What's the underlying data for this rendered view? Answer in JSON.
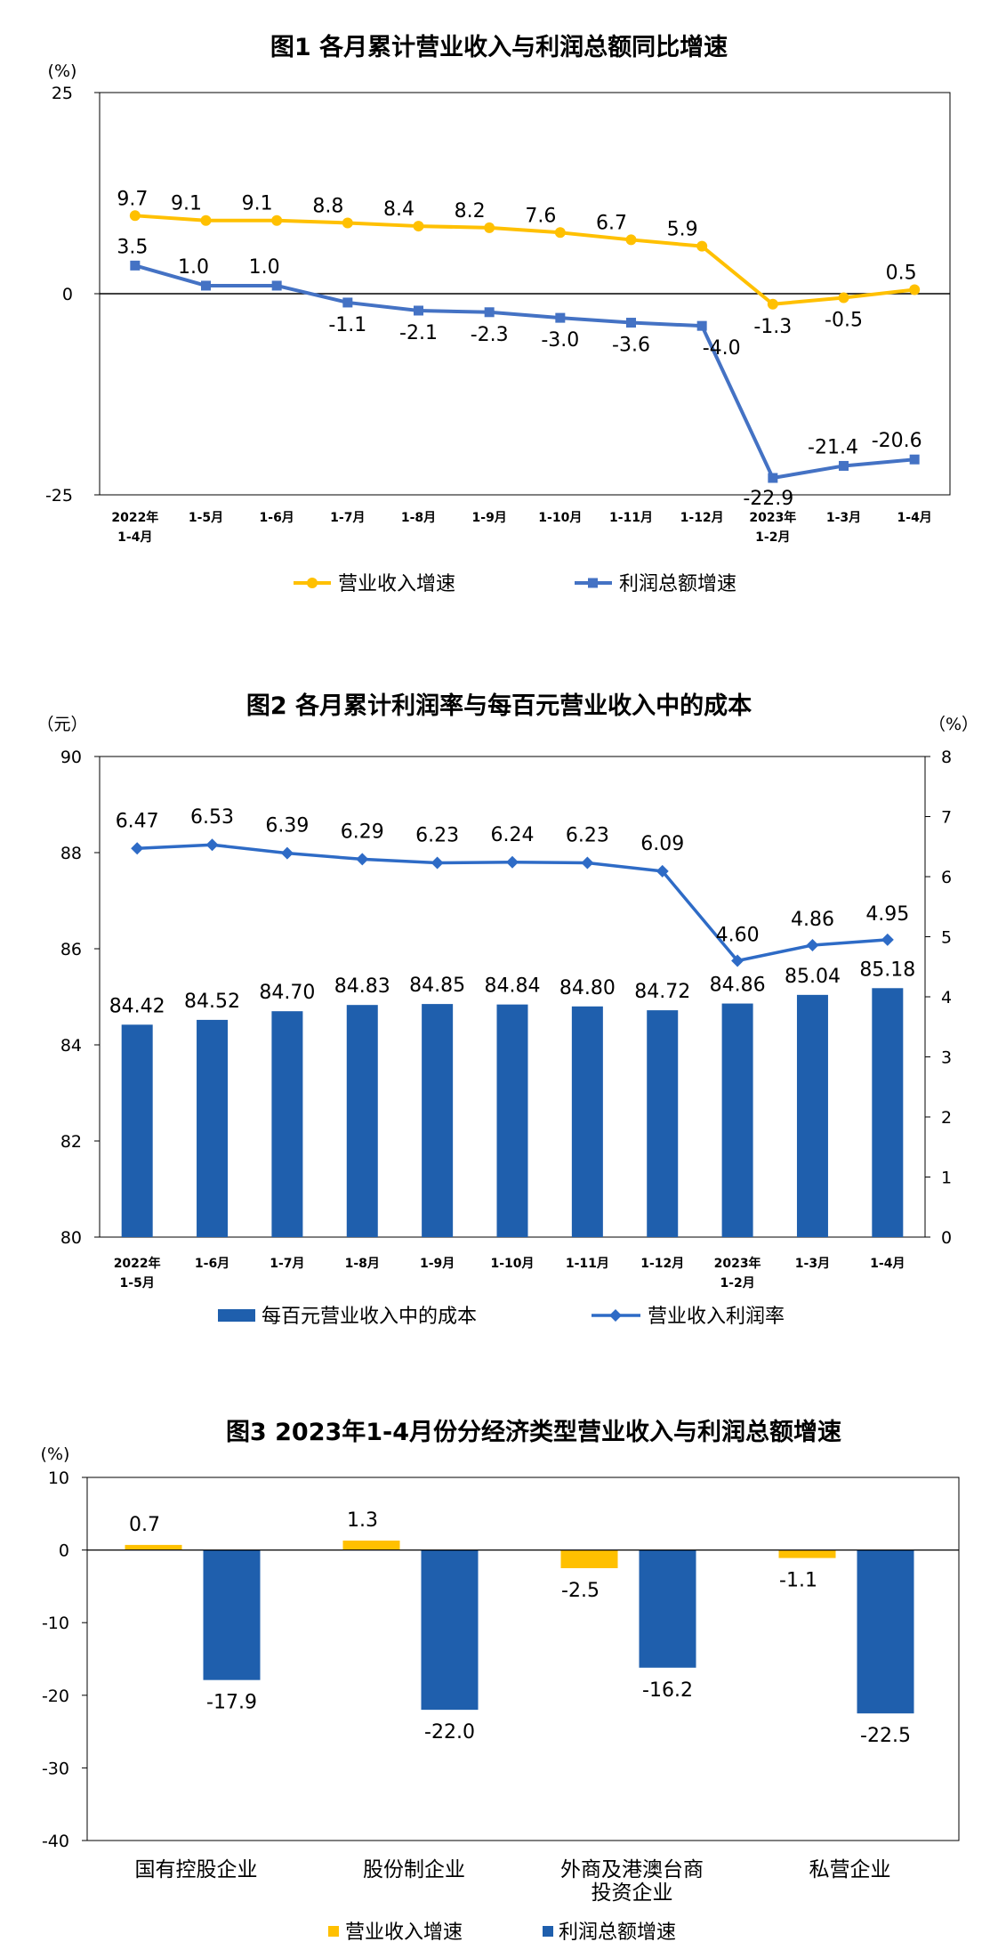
{
  "chart_data": [
    {
      "type": "line",
      "title": "图1  各月累计营业收入与利润总额同比增速",
      "ylabel": "(%)",
      "ylim": [
        -25,
        25
      ],
      "yticks": [
        "25",
        "0",
        "-25"
      ],
      "categories": [
        [
          "2022年",
          "1-4月"
        ],
        [
          "1-5月"
        ],
        [
          "1-6月"
        ],
        [
          "1-7月"
        ],
        [
          "1-8月"
        ],
        [
          "1-9月"
        ],
        [
          "1-10月"
        ],
        [
          "1-11月"
        ],
        [
          "1-12月"
        ],
        [
          "2023年",
          "1-2月"
        ],
        [
          "1-3月"
        ],
        [
          "1-4月"
        ]
      ],
      "series": [
        {
          "name": "营业收入增速",
          "color": "#FFC000",
          "marker": "circle",
          "values": [
            9.7,
            9.1,
            9.1,
            8.8,
            8.4,
            8.2,
            7.6,
            6.7,
            5.9,
            -1.3,
            -0.5,
            0.5
          ],
          "labels": [
            "9.7",
            "9.1",
            "9.1",
            "8.8",
            "8.4",
            "8.2",
            "7.6",
            "6.7",
            "5.9",
            "-1.3",
            "-0.5",
            "0.5"
          ]
        },
        {
          "name": "利润总额增速",
          "color": "#4472C4",
          "marker": "square",
          "values": [
            3.5,
            1.0,
            1.0,
            -1.1,
            -2.1,
            -2.3,
            -3.0,
            -3.6,
            -4.0,
            -22.9,
            -21.4,
            -20.6
          ],
          "labels": [
            "3.5",
            "1.0",
            "1.0",
            "-1.1",
            "-2.1",
            "-2.3",
            "-3.0",
            "-3.6",
            "-4.0",
            "-22.9",
            "-21.4",
            "-20.6"
          ]
        }
      ],
      "legend": "bottom"
    },
    {
      "type": "bar+line",
      "title": "图2  各月累计利润率与每百元营业收入中的成本",
      "ylabel_left": "（元）",
      "ylabel_right": "（%）",
      "ylim_left": [
        80,
        90
      ],
      "ylim_right": [
        0,
        8
      ],
      "yticks_left": [
        "90",
        "88",
        "86",
        "84",
        "82",
        "80"
      ],
      "yticks_right": [
        "8",
        "7",
        "6",
        "5",
        "4",
        "3",
        "2",
        "1",
        "0"
      ],
      "categories": [
        [
          "2022年",
          "1-5月"
        ],
        [
          "1-6月"
        ],
        [
          "1-7月"
        ],
        [
          "1-8月"
        ],
        [
          "1-9月"
        ],
        [
          "1-10月"
        ],
        [
          "1-11月"
        ],
        [
          "1-12月"
        ],
        [
          "2023年",
          "1-2月"
        ],
        [
          "1-3月"
        ],
        [
          "1-4月"
        ]
      ],
      "series": [
        {
          "name": "每百元营业收入中的成本",
          "kind": "bar",
          "axis": "left",
          "color": "#1F5FAD",
          "values": [
            84.42,
            84.52,
            84.7,
            84.83,
            84.85,
            84.84,
            84.8,
            84.72,
            84.86,
            85.04,
            85.18
          ],
          "labels": [
            "84.42",
            "84.52",
            "84.70",
            "84.83",
            "84.85",
            "84.84",
            "84.80",
            "84.72",
            "84.86",
            "85.04",
            "85.18"
          ]
        },
        {
          "name": "营业收入利润率",
          "kind": "line",
          "axis": "right",
          "color": "#2E6BC6",
          "values": [
            6.47,
            6.53,
            6.39,
            6.29,
            6.23,
            6.24,
            6.23,
            6.09,
            4.6,
            4.86,
            4.95
          ],
          "labels": [
            "6.47",
            "6.53",
            "6.39",
            "6.29",
            "6.23",
            "6.24",
            "6.23",
            "6.09",
            "4.60",
            "4.86",
            "4.95"
          ]
        }
      ],
      "legend": "bottom"
    },
    {
      "type": "bar",
      "title": "图3  2023年1-4月份分经济类型营业收入与利润总额增速",
      "ylabel": "(%)",
      "ylim": [
        -40,
        10
      ],
      "yticks": [
        "10",
        "0",
        "-10",
        "-20",
        "-30",
        "-40"
      ],
      "categories": [
        [
          "国有控股企业"
        ],
        [
          "股份制企业"
        ],
        [
          "外商及港澳台商",
          "投资企业"
        ],
        [
          "私营企业"
        ]
      ],
      "series": [
        {
          "name": "营业收入增速",
          "color": "#FFC000",
          "values": [
            0.7,
            1.3,
            -2.5,
            -1.1
          ],
          "labels": [
            "0.7",
            "1.3",
            "-2.5",
            "-1.1"
          ]
        },
        {
          "name": "利润总额增速",
          "color": "#1F5FAD",
          "values": [
            -17.9,
            -22.0,
            -16.2,
            -22.5
          ],
          "labels": [
            "-17.9",
            "-22.0",
            "-16.2",
            "-22.5"
          ]
        }
      ],
      "legend": "bottom"
    }
  ]
}
